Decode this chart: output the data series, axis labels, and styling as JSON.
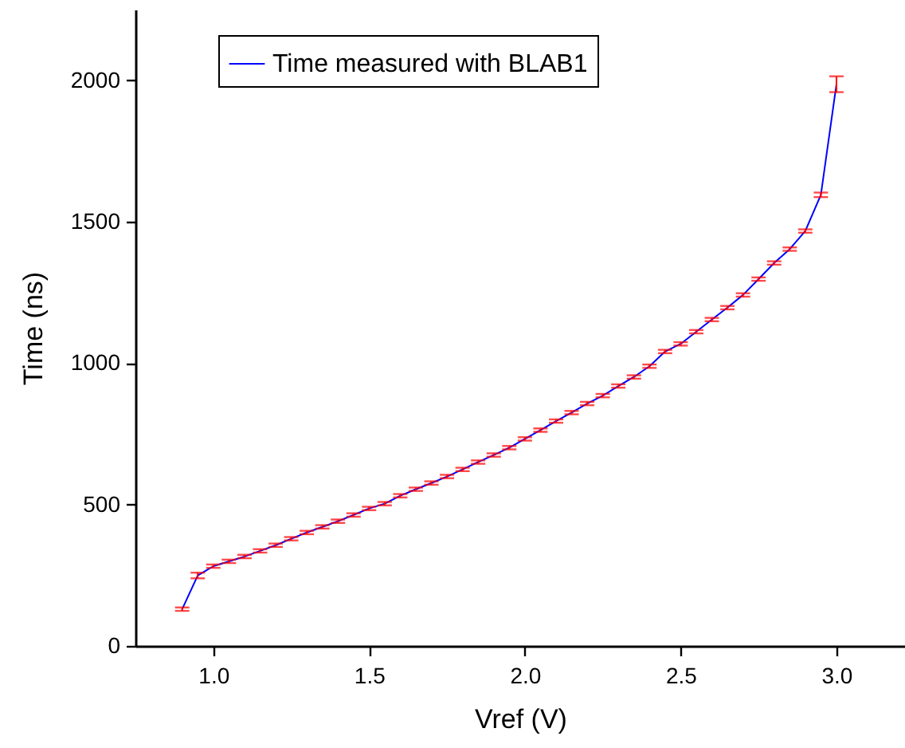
{
  "chart_data": {
    "type": "line",
    "xlabel": "Vref (V)",
    "ylabel": "Time (ns)",
    "x": [
      0.9,
      0.95,
      1.0,
      1.05,
      1.1,
      1.15,
      1.2,
      1.25,
      1.3,
      1.35,
      1.4,
      1.45,
      1.5,
      1.55,
      1.6,
      1.65,
      1.7,
      1.75,
      1.8,
      1.85,
      1.9,
      1.95,
      2.0,
      2.05,
      2.1,
      2.15,
      2.2,
      2.25,
      2.3,
      2.35,
      2.4,
      2.45,
      2.5,
      2.55,
      2.6,
      2.65,
      2.7,
      2.75,
      2.8,
      2.85,
      2.9,
      2.95,
      3.0
    ],
    "series": [
      {
        "name": "Time measured with BLAB1",
        "color": "#0000ff",
        "values": [
          130,
          249,
          282,
          299,
          316,
          336,
          356,
          379,
          401,
          421,
          441,
          463,
          486,
          503,
          531,
          554,
          576,
          599,
          624,
          650,
          675,
          701,
          732,
          763,
          795,
          825,
          857,
          885,
          919,
          951,
          989,
          1041,
          1068,
          1111,
          1154,
          1196,
          1241,
          1297,
          1354,
          1403,
          1467,
          1595,
          1986
        ],
        "errors": [
          6,
          10,
          6,
          6,
          6,
          6,
          6,
          6,
          6,
          6,
          6,
          6,
          6,
          6,
          6,
          6,
          6,
          6,
          6,
          6,
          6,
          6,
          6,
          6,
          6,
          6,
          6,
          6,
          6,
          6,
          6,
          6,
          6,
          6,
          6,
          6,
          6,
          6,
          6,
          6,
          6,
          8,
          28
        ]
      }
    ],
    "xlim": [
      0.75,
      3.22
    ],
    "ylim": [
      0,
      2250
    ],
    "xticks": [
      {
        "value": 1,
        "label": "1.0"
      },
      1.5,
      {
        "value": 2,
        "label": "2.0"
      },
      2.5,
      {
        "value": 3,
        "label": "3.0"
      }
    ],
    "yticks": [
      0,
      500,
      1000,
      1500,
      2000
    ],
    "legend": "top",
    "grid": false,
    "marker": "none",
    "line_style": "solid"
  }
}
